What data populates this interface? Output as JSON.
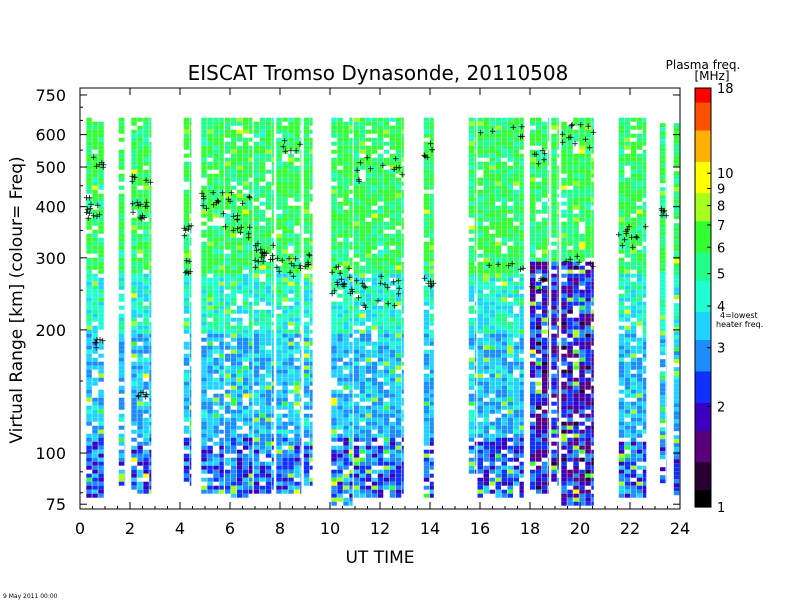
{
  "figure": {
    "title": "EISCAT Tromso Dynasonde,  20110508",
    "footer": "9 May 2011 00:00"
  },
  "chart_data": {
    "type": "heatmap",
    "title": "EISCAT Tromso Dynasonde,  20110508",
    "xlabel": "UT TIME",
    "ylabel": "Virtual Range [km]    (colour= Freq)",
    "x_ticks": [
      "0",
      "2",
      "4",
      "6",
      "8",
      "10",
      "12",
      "14",
      "16",
      "18",
      "20",
      "22",
      "24"
    ],
    "xlim": [
      0,
      24
    ],
    "y_scale": "log",
    "ylim": [
      73,
      780
    ],
    "y_ticks": [
      {
        "value": 75,
        "label": "75"
      },
      {
        "value": 100,
        "label": "100"
      },
      {
        "value": 200,
        "label": "200"
      },
      {
        "value": 300,
        "label": "300"
      },
      {
        "value": 400,
        "label": "400"
      },
      {
        "value": 500,
        "label": "500"
      },
      {
        "value": 600,
        "label": "600"
      },
      {
        "value": 750,
        "label": "750"
      }
    ],
    "colorbar": {
      "title": "Plasma freq.",
      "unit": "[MHz]",
      "scale": "log",
      "range": [
        1,
        18
      ],
      "ticks": [
        {
          "value": 1,
          "label": "1"
        },
        {
          "value": 2,
          "label": "2"
        },
        {
          "value": 3,
          "label": "3"
        },
        {
          "value": 4,
          "label": "4"
        },
        {
          "value": 5,
          "label": "5"
        },
        {
          "value": 6,
          "label": "6"
        },
        {
          "value": 7,
          "label": "7"
        },
        {
          "value": 8,
          "label": "8"
        },
        {
          "value": 9,
          "label": "9"
        },
        {
          "value": 10,
          "label": "10"
        },
        {
          "value": 18,
          "label": "18"
        }
      ],
      "heater_note_line1": "4=lowest",
      "heater_note_line2": "heater freq.",
      "colors": [
        "#000000",
        "#2a0033",
        "#5a007a",
        "#3a00c0",
        "#1030ff",
        "#1c8cff",
        "#1fd2ff",
        "#20ffd0",
        "#22ff8a",
        "#33ff33",
        "#a5ff1a",
        "#ffff00",
        "#ffb000",
        "#ff5000",
        "#ff0000"
      ]
    },
    "data_gaps_ut": [
      [
        1.0,
        1.5
      ],
      [
        2.9,
        4.1
      ],
      [
        9.4,
        10.0
      ],
      [
        13.0,
        13.7
      ],
      [
        14.2,
        15.5
      ]
    ],
    "columns": [
      {
        "ut_start": 0.25,
        "ut_end": 0.95,
        "range_min": 78,
        "range_max": 660,
        "echo_ranges": [
          370,
          400,
          510,
          180
        ]
      },
      {
        "ut_start": 1.55,
        "ut_end": 1.8,
        "range_min": 85,
        "range_max": 660,
        "echo_ranges": []
      },
      {
        "ut_start": 2.05,
        "ut_end": 2.85,
        "range_min": 80,
        "range_max": 660,
        "echo_ranges": [
          380,
          410,
          460,
          135
        ]
      },
      {
        "ut_start": 4.15,
        "ut_end": 4.45,
        "range_min": 85,
        "range_max": 660,
        "echo_ranges": [
          345,
          280
        ]
      },
      {
        "ut_start": 4.85,
        "ut_end": 5.75,
        "range_min": 80,
        "range_max": 660,
        "echo_ranges": [
          390,
          420
        ]
      },
      {
        "ut_start": 5.8,
        "ut_end": 6.9,
        "range_min": 78,
        "range_max": 660,
        "echo_ranges": [
          360,
          340,
          410
        ]
      },
      {
        "ut_start": 6.95,
        "ut_end": 7.75,
        "range_min": 80,
        "range_max": 660,
        "echo_ranges": [
          310,
          290,
          300
        ]
      },
      {
        "ut_start": 7.85,
        "ut_end": 8.85,
        "range_min": 80,
        "range_max": 660,
        "echo_ranges": [
          290,
          275,
          560
        ]
      },
      {
        "ut_start": 8.95,
        "ut_end": 9.3,
        "range_min": 85,
        "range_max": 660,
        "echo_ranges": [
          290
        ]
      },
      {
        "ut_start": 10.05,
        "ut_end": 10.9,
        "range_min": 75,
        "range_max": 660,
        "echo_ranges": [
          255,
          245,
          270
        ]
      },
      {
        "ut_start": 10.95,
        "ut_end": 12.95,
        "range_min": 78,
        "range_max": 660,
        "echo_ranges": [
          250,
          230,
          260,
          470,
          510
        ]
      },
      {
        "ut_start": 13.75,
        "ut_end": 14.15,
        "range_min": 78,
        "range_max": 660,
        "echo_ranges": [
          255,
          540
        ]
      },
      {
        "ut_start": 15.55,
        "ut_end": 15.85,
        "range_min": 90,
        "range_max": 660,
        "echo_ranges": []
      },
      {
        "ut_start": 15.9,
        "ut_end": 17.75,
        "range_min": 78,
        "range_max": 660,
        "echo_ranges": [
          280,
          600
        ]
      },
      {
        "ut_start": 18.0,
        "ut_end": 18.75,
        "range_min": 80,
        "range_max": 660,
        "echo_ranges": [
          255,
          520
        ]
      },
      {
        "ut_start": 18.85,
        "ut_end": 19.15,
        "range_min": 85,
        "range_max": 660,
        "echo_ranges": []
      },
      {
        "ut_start": 19.25,
        "ut_end": 20.55,
        "range_min": 75,
        "range_max": 660,
        "echo_ranges": [
          290,
          600,
          560
        ]
      },
      {
        "ut_start": 21.55,
        "ut_end": 22.65,
        "range_min": 78,
        "range_max": 660,
        "echo_ranges": [
          325,
          340
        ]
      },
      {
        "ut_start": 23.2,
        "ut_end": 23.45,
        "range_min": 85,
        "range_max": 640,
        "echo_ranges": [
          380
        ]
      },
      {
        "ut_start": 23.75,
        "ut_end": 24.0,
        "range_min": 80,
        "range_max": 640,
        "echo_ranges": []
      }
    ]
  }
}
